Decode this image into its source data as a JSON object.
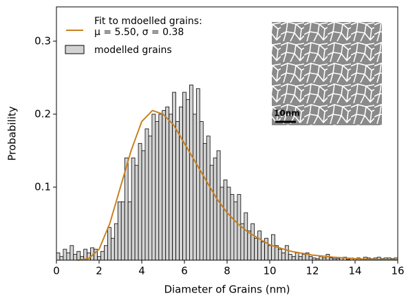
{
  "chart_data": {
    "type": "histogram",
    "xlabel": "Diameter of Grains (nm)",
    "ylabel": "Probability",
    "xlim": [
      0,
      16
    ],
    "ylim": [
      0,
      0.347
    ],
    "xticks": [
      0,
      2,
      4,
      6,
      8,
      10,
      12,
      14,
      16
    ],
    "yticks": [
      0.1,
      0.2,
      0.3
    ],
    "legend": "upper left",
    "inset_label": "10nm",
    "series": [
      {
        "name": "modelled grains",
        "color": "#d3d3d3",
        "bins": [
          0,
          0.16,
          0.32,
          0.48,
          0.64,
          0.8,
          0.96,
          1.12,
          1.28,
          1.44,
          1.6,
          1.76,
          1.92,
          2.08,
          2.24,
          2.4,
          2.56,
          2.72,
          2.88,
          3.04,
          3.2,
          3.36,
          3.52,
          3.68,
          3.84,
          4,
          4.16,
          4.32,
          4.48,
          4.64,
          4.8,
          4.96,
          5.12,
          5.28,
          5.44,
          5.6,
          5.76,
          5.92,
          6.08,
          6.24,
          6.4,
          6.56,
          6.72,
          6.88,
          7.04,
          7.2,
          7.36,
          7.52,
          7.68,
          7.84,
          8,
          8.16,
          8.32,
          8.48,
          8.64,
          8.8,
          8.96,
          9.12,
          9.28,
          9.44,
          9.6,
          9.76,
          9.92,
          10.08,
          10.24,
          10.4,
          10.56,
          10.72,
          10.88,
          11.04,
          11.2,
          11.36,
          11.52,
          11.68,
          11.84,
          12,
          12.16,
          12.32,
          12.48,
          12.64,
          12.8,
          12.96,
          13.12,
          13.28,
          13.44,
          13.6,
          13.76,
          13.92,
          14.08,
          14.24,
          14.4,
          14.56,
          14.72,
          14.88,
          15.04,
          15.2,
          15.36,
          15.52,
          15.68,
          15.84,
          16
        ],
        "values": [
          0.01,
          0.005,
          0.015,
          0.01,
          0.02,
          0.008,
          0.012,
          0.005,
          0.015,
          0.01,
          0.017,
          0.015,
          0.005,
          0.012,
          0.02,
          0.045,
          0.03,
          0.05,
          0.08,
          0.08,
          0.14,
          0.08,
          0.14,
          0.13,
          0.16,
          0.15,
          0.18,
          0.17,
          0.2,
          0.19,
          0.2,
          0.205,
          0.21,
          0.2,
          0.23,
          0.19,
          0.21,
          0.23,
          0.22,
          0.24,
          0.2,
          0.235,
          0.19,
          0.16,
          0.17,
          0.13,
          0.14,
          0.15,
          0.1,
          0.11,
          0.1,
          0.09,
          0.08,
          0.09,
          0.05,
          0.065,
          0.04,
          0.05,
          0.03,
          0.04,
          0.025,
          0.03,
          0.02,
          0.035,
          0.02,
          0.015,
          0.01,
          0.02,
          0.008,
          0.005,
          0.01,
          0.005,
          0.008,
          0.01,
          0.005,
          0.003,
          0.002,
          0.005,
          0.003,
          0.008,
          0.003,
          0.002,
          0.002,
          0.003,
          0.004,
          0.001,
          0.003,
          0.002,
          0.003,
          0.002,
          0.004,
          0.003,
          0.002,
          0.003,
          0.004,
          0.002,
          0.003,
          0.003,
          0.002,
          0.003
        ]
      }
    ],
    "fit": {
      "name": "Fit to mdoelled grains:",
      "params": "μ = 5.50, σ = 0.38",
      "color": "#c8801e",
      "x": [
        1,
        1.5,
        2,
        2.5,
        3,
        3.5,
        4,
        4.5,
        5,
        5.5,
        6,
        6.5,
        7,
        7.5,
        8,
        8.5,
        9,
        10,
        11,
        12,
        13,
        14,
        15,
        16
      ],
      "values": [
        0,
        0.002,
        0.015,
        0.05,
        0.1,
        0.15,
        0.19,
        0.205,
        0.2,
        0.185,
        0.16,
        0.135,
        0.11,
        0.085,
        0.065,
        0.05,
        0.038,
        0.021,
        0.012,
        0.007,
        0.004,
        0.002,
        0.001,
        0.0007
      ]
    }
  }
}
